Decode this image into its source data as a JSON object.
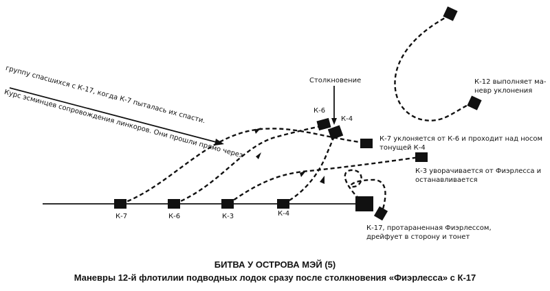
{
  "diagram": {
    "labels": {
      "collision": "Столкновение",
      "k6_top": "К-6",
      "k4_top": "К-4",
      "k7_base": "К-7",
      "k6_base": "К-6",
      "k3_base": "К-3",
      "k4_base": "К-4"
    },
    "notes": {
      "destroyers_1": "Курс эсминцев сопровождения линкоров. Они прошли прямо через",
      "destroyers_2": "группу спасшихся с К-17, когда К-7 пыталась их спасти.",
      "k12_1": "К-12 выполняет ма-",
      "k12_2": "невр уклонения",
      "k7_1": "К-7 уклоняется от К-6 и проходит над носом",
      "k7_2": "тонущей К-4",
      "k3_1": "К-3 уворачивается от Фиэрлесса и",
      "k3_2": "останавливается",
      "k17_1": "К-17, протараненная Фиэрлессом,",
      "k17_2": "дрейфует в сторону и тонет"
    }
  },
  "caption": {
    "title": "БИТВА У ОСТРОВА МЭЙ (5)",
    "subtitle": "Маневры 12-й флотилии подводных лодок сразу после столкновения «Фиэрлесса» с К-17"
  }
}
